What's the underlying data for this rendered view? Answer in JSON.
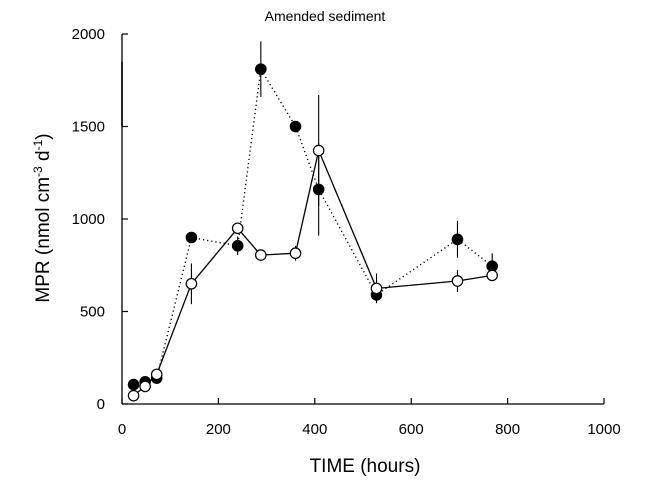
{
  "chart_data": {
    "type": "line",
    "title": "Amended sediment",
    "xlabel": "TIME (hours)",
    "ylabel": "MPR (nmol cm",
    "ylabel_sup1": "-3",
    "ylabel_mid": " d",
    "ylabel_sup2": "-1",
    "ylabel_end": ")",
    "xlim": [
      0,
      1000
    ],
    "ylim": [
      0,
      2000
    ],
    "xticks": [
      0,
      200,
      400,
      600,
      800,
      1000
    ],
    "yticks": [
      0,
      500,
      1000,
      1500,
      2000
    ],
    "grid": false,
    "series": [
      {
        "marker": "filled-circle",
        "line": "dotted",
        "color": "#000000",
        "points": [
          {
            "x": 24,
            "y": 105,
            "err": 0
          },
          {
            "x": 48,
            "y": 120,
            "err": 0
          },
          {
            "x": 72,
            "y": 140,
            "err": 0
          },
          {
            "x": 144,
            "y": 900,
            "err": 0
          },
          {
            "x": 240,
            "y": 855,
            "err": 50
          },
          {
            "x": 288,
            "y": 1810,
            "err": 150
          },
          {
            "x": 360,
            "y": 1500,
            "err": 0
          },
          {
            "x": 408,
            "y": 1160,
            "err": 250
          },
          {
            "x": 528,
            "y": 590,
            "err": 40
          },
          {
            "x": 696,
            "y": 890,
            "err": 100
          },
          {
            "x": 768,
            "y": 745,
            "err": 70
          }
        ]
      },
      {
        "marker": "open-circle",
        "line": "solid",
        "color": "#000000",
        "points": [
          {
            "x": 24,
            "y": 45,
            "err": 0
          },
          {
            "x": 48,
            "y": 95,
            "err": 0
          },
          {
            "x": 72,
            "y": 160,
            "err": 0
          },
          {
            "x": 144,
            "y": 650,
            "err": 110
          },
          {
            "x": 240,
            "y": 950,
            "err": 0
          },
          {
            "x": 288,
            "y": 805,
            "err": 0
          },
          {
            "x": 360,
            "y": 815,
            "err": 40
          },
          {
            "x": 408,
            "y": 1370,
            "err": 300
          },
          {
            "x": 528,
            "y": 625,
            "err": 80
          },
          {
            "x": 696,
            "y": 665,
            "err": 60
          },
          {
            "x": 768,
            "y": 695,
            "err": 30
          }
        ]
      }
    ],
    "artifact_bar": {
      "x": 0,
      "y_from": 1500,
      "y_to": 1850
    }
  }
}
